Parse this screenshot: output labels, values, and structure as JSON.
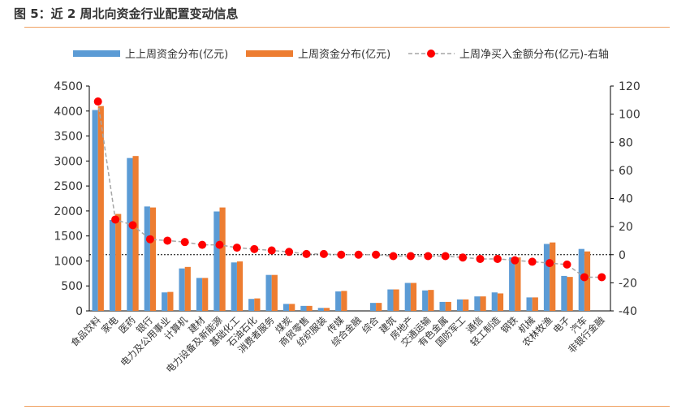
{
  "figure": {
    "title": "图 5：近 2 周北向资金行业配置变动信息"
  },
  "colors": {
    "prev2": "#5b9bd5",
    "prev1": "#ed7d31",
    "net": "#ff0000",
    "netLine": "#a6a6a6",
    "axis": "#000000",
    "rule": "#f0a060"
  },
  "chart_data": {
    "type": "bar",
    "categories": [
      "食品饮料",
      "家电",
      "医药",
      "银行",
      "电力及公用事业",
      "计算机",
      "建材",
      "电力设备及新能源",
      "基础化工",
      "石油石化",
      "消费者服务",
      "煤炭",
      "商贸零售",
      "纺织服装",
      "传媒",
      "综合金融",
      "综合",
      "建筑",
      "房地产",
      "交通运输",
      "有色金属",
      "国防军工",
      "通信",
      "轻工制造",
      "钢铁",
      "机械",
      "农林牧渔",
      "电子",
      "汽车",
      "非银行金融"
    ],
    "series": [
      {
        "name": "上上周资金分布(亿元)",
        "type": "bar",
        "axis": "left",
        "values": [
          4020,
          1820,
          3060,
          2090,
          370,
          850,
          660,
          1990,
          970,
          240,
          720,
          140,
          100,
          60,
          390,
          0,
          160,
          430,
          560,
          410,
          180,
          230,
          290,
          370,
          1070,
          270,
          1340,
          700,
          1240,
          0
        ]
      },
      {
        "name": "上周资金分布(亿元)",
        "type": "bar",
        "axis": "left",
        "values": [
          4100,
          1940,
          3100,
          2070,
          380,
          880,
          660,
          2070,
          990,
          250,
          720,
          140,
          100,
          60,
          400,
          0,
          160,
          430,
          560,
          420,
          180,
          230,
          290,
          350,
          1070,
          270,
          1370,
          680,
          1190,
          0
        ]
      },
      {
        "name": "上周净买入金额分布(亿元)-右轴",
        "type": "line",
        "axis": "right",
        "values": [
          109,
          25,
          21,
          11,
          10,
          9,
          7,
          7,
          5,
          4,
          3,
          2,
          0.5,
          0.5,
          0,
          0,
          0,
          -1,
          -1,
          -1,
          -1,
          -2,
          -3,
          -3,
          -4,
          -5,
          -6,
          -7,
          -16,
          -16
        ]
      }
    ],
    "y_left": {
      "min": 0,
      "max": 4500,
      "ticks": [
        0,
        500,
        1000,
        1500,
        2000,
        2500,
        3000,
        3500,
        4000,
        4500
      ]
    },
    "y_right": {
      "min": -40,
      "max": 120,
      "ticks": [
        -40,
        -20,
        0,
        20,
        40,
        60,
        80,
        100,
        120
      ]
    },
    "legend_position": "top"
  }
}
